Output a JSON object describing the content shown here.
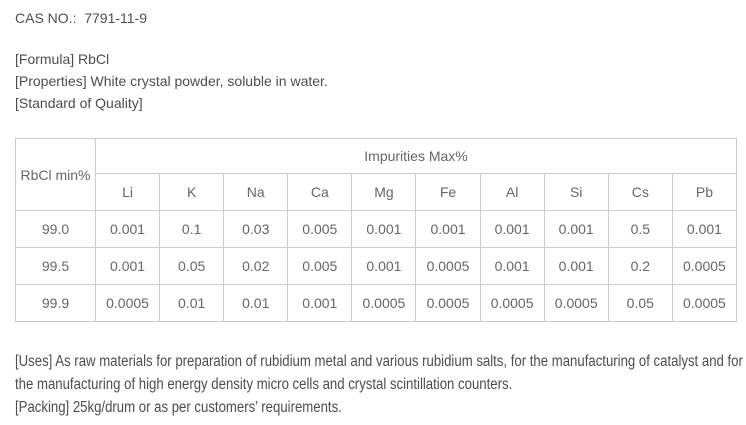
{
  "page": {
    "cas_line": "CAS NO.:  7791-11-9",
    "formula_line": "[Formula] RbCl",
    "properties_line": "[Properties] White crystal powder, soluble in water.",
    "standard_line": "[Standard of Quality]",
    "uses_paragraph": "[Uses] As raw materials for preparation of rubidium metal and various rubidium salts, for the manufacturing of catalyst and for the manufacturing of high energy density micro cells and crystal scintillation counters.",
    "packing_paragraph": "[Packing] 25kg/drum or as per customers’ requirements."
  },
  "table": {
    "corner_header": "RbCl min%",
    "group_header": "Impurities Max%",
    "columns": [
      "Li",
      "K",
      "Na",
      "Ca",
      "Mg",
      "Fe",
      "Al",
      "Si",
      "Cs",
      "Pb"
    ],
    "rows": [
      {
        "rbcl": "99.0",
        "values": [
          "0.001",
          "0.1",
          "0.03",
          "0.005",
          "0.001",
          "0.001",
          "0.001",
          "0.001",
          "0.5",
          "0.001"
        ]
      },
      {
        "rbcl": "99.5",
        "values": [
          "0.001",
          "0.05",
          "0.02",
          "0.005",
          "0.001",
          "0.0005",
          "0.001",
          "0.001",
          "0.2",
          "0.0005"
        ]
      },
      {
        "rbcl": "99.9",
        "values": [
          "0.0005",
          "0.01",
          "0.01",
          "0.001",
          "0.0005",
          "0.0005",
          "0.0005",
          "0.0005",
          "0.05",
          "0.0005"
        ]
      }
    ]
  },
  "colors": {
    "text": "#4d4d4d",
    "table_text": "#666666",
    "table_border": "#cccccc",
    "background": "#ffffff"
  }
}
